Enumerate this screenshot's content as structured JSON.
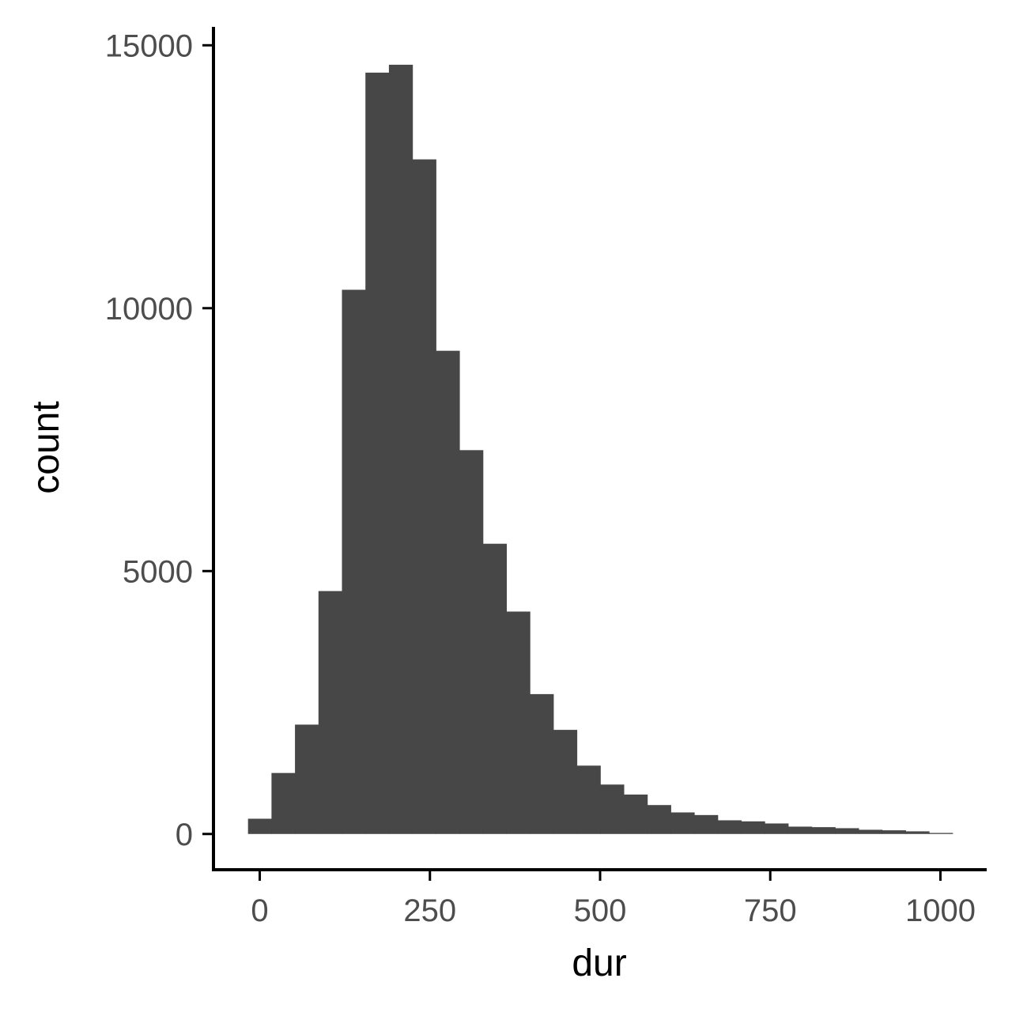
{
  "chart_data": {
    "type": "bar",
    "subtype": "histogram",
    "title": "",
    "xlabel": "dur",
    "ylabel": "count",
    "bin_width": 34.5,
    "bins": [
      {
        "x0": -17.25,
        "x1": 17.25,
        "count": 290
      },
      {
        "x0": 17.25,
        "x1": 51.75,
        "count": 1160
      },
      {
        "x0": 51.75,
        "x1": 86.25,
        "count": 2080
      },
      {
        "x0": 86.25,
        "x1": 120.75,
        "count": 4620
      },
      {
        "x0": 120.75,
        "x1": 155.25,
        "count": 10350
      },
      {
        "x0": 155.25,
        "x1": 189.75,
        "count": 14480
      },
      {
        "x0": 189.75,
        "x1": 224.25,
        "count": 14630
      },
      {
        "x0": 224.25,
        "x1": 258.75,
        "count": 12830
      },
      {
        "x0": 258.75,
        "x1": 293.25,
        "count": 9190
      },
      {
        "x0": 293.25,
        "x1": 327.75,
        "count": 7300
      },
      {
        "x0": 327.75,
        "x1": 362.25,
        "count": 5520
      },
      {
        "x0": 362.25,
        "x1": 396.75,
        "count": 4230
      },
      {
        "x0": 396.75,
        "x1": 431.25,
        "count": 2660
      },
      {
        "x0": 431.25,
        "x1": 465.75,
        "count": 1980
      },
      {
        "x0": 465.75,
        "x1": 500.25,
        "count": 1300
      },
      {
        "x0": 500.25,
        "x1": 534.75,
        "count": 940
      },
      {
        "x0": 534.75,
        "x1": 569.25,
        "count": 750
      },
      {
        "x0": 569.25,
        "x1": 603.75,
        "count": 550
      },
      {
        "x0": 603.75,
        "x1": 638.25,
        "count": 410
      },
      {
        "x0": 638.25,
        "x1": 672.75,
        "count": 360
      },
      {
        "x0": 672.75,
        "x1": 707.25,
        "count": 260
      },
      {
        "x0": 707.25,
        "x1": 741.75,
        "count": 240
      },
      {
        "x0": 741.75,
        "x1": 776.25,
        "count": 200
      },
      {
        "x0": 776.25,
        "x1": 810.75,
        "count": 140
      },
      {
        "x0": 810.75,
        "x1": 845.25,
        "count": 130
      },
      {
        "x0": 845.25,
        "x1": 879.75,
        "count": 110
      },
      {
        "x0": 879.75,
        "x1": 914.25,
        "count": 80
      },
      {
        "x0": 914.25,
        "x1": 948.75,
        "count": 70
      },
      {
        "x0": 948.75,
        "x1": 983.25,
        "count": 50
      },
      {
        "x0": 983.25,
        "x1": 1017.75,
        "count": 20
      }
    ],
    "xlim": [
      -68,
      1068
    ],
    "ylim": [
      -680,
      15350
    ],
    "x_ticks": [
      0,
      250,
      500,
      750,
      1000
    ],
    "x_tick_labels": [
      "0",
      "250",
      "500",
      "750",
      "1000"
    ],
    "y_ticks": [
      0,
      5000,
      10000,
      15000
    ],
    "y_tick_labels": [
      "0",
      "5000",
      "10000",
      "15000"
    ],
    "grid": false,
    "legend": "none",
    "bar_color": "#474747",
    "axis_color": "#000000",
    "tick_label_color": "#4d4d4d"
  }
}
